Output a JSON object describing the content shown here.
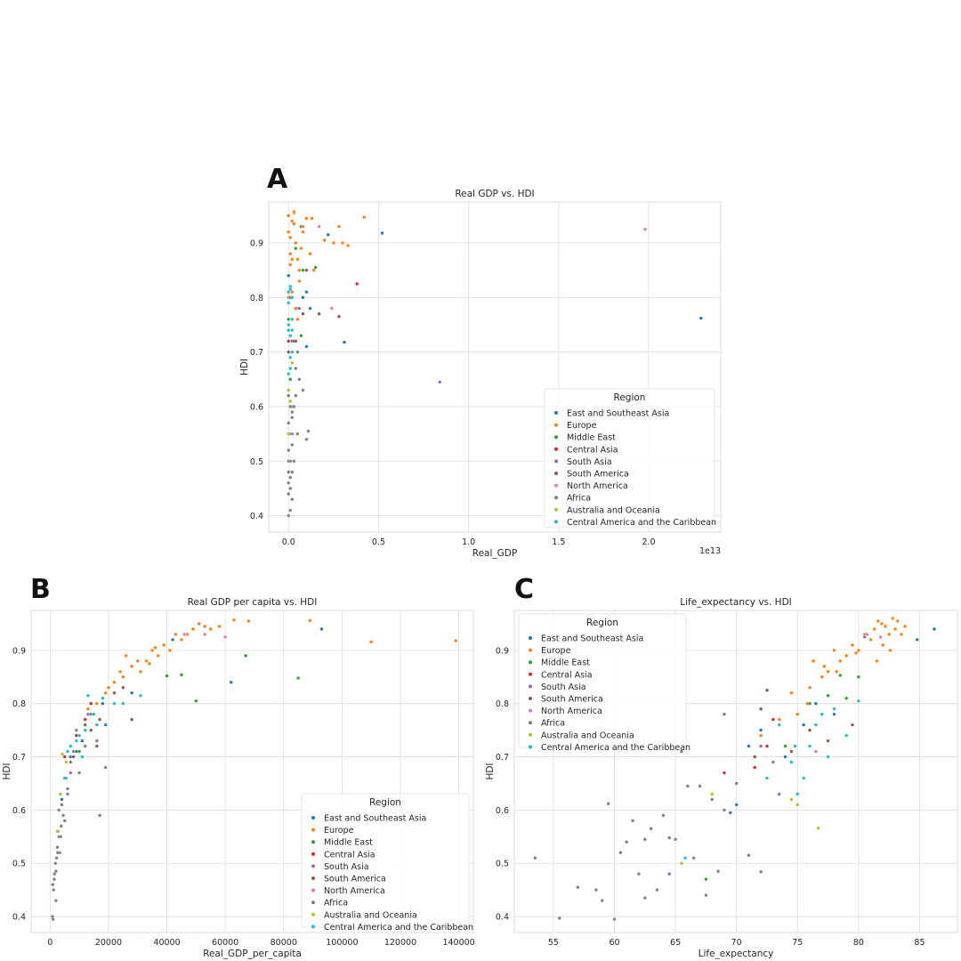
{
  "panels": [
    "A",
    "B",
    "C"
  ],
  "legend": {
    "title": "Region",
    "entries": [
      {
        "name": "East and Southeast Asia",
        "color": "#1f77b4"
      },
      {
        "name": "Europe",
        "color": "#ff7f0e"
      },
      {
        "name": "Middle East",
        "color": "#2ca02c"
      },
      {
        "name": "Central Asia",
        "color": "#d62728"
      },
      {
        "name": "South Asia",
        "color": "#9467bd"
      },
      {
        "name": "South America",
        "color": "#8c564b"
      },
      {
        "name": "North America",
        "color": "#e377c2"
      },
      {
        "name": "Africa",
        "color": "#7f7f7f"
      },
      {
        "name": "Australia and Oceania",
        "color": "#bcbd22"
      },
      {
        "name": "Central America and the Caribbean",
        "color": "#17becf"
      }
    ]
  },
  "chart_data": [
    {
      "panel": "A",
      "type": "scatter",
      "title": "Real GDP vs. HDI",
      "xlabel": "Real_GDP",
      "ylabel": "HDI",
      "x_offset_text": "1e13",
      "xlim": [
        -0.11,
        2.4
      ],
      "ylim": [
        0.37,
        0.975
      ],
      "xticks": [
        0,
        0.5,
        1.0,
        1.5,
        2.0
      ],
      "xtick_labels": [
        "0.0",
        "0.5",
        "1.0",
        "1.5",
        "2.0"
      ],
      "yticks": [
        0.4,
        0.5,
        0.6,
        0.7,
        0.8,
        0.9
      ],
      "ytick_labels": [
        "0.4",
        "0.5",
        "0.6",
        "0.7",
        "0.8",
        "0.9"
      ],
      "grid": true,
      "legend_position": "lower right",
      "series": [
        {
          "name": "East and Southeast Asia",
          "x": [
            0.0,
            0.01,
            0.02,
            0.05,
            0.07,
            0.1,
            0.1,
            0.12,
            0.22,
            0.31,
            0.52,
            2.29,
            0.02,
            0.08
          ],
          "y": [
            0.84,
            0.8,
            0.72,
            0.78,
            0.93,
            0.81,
            0.71,
            0.78,
            0.915,
            0.718,
            0.918,
            0.762,
            0.6,
            0.8
          ]
        },
        {
          "name": "Europe",
          "x": [
            0.0,
            0.0,
            0.01,
            0.01,
            0.02,
            0.03,
            0.04,
            0.05,
            0.06,
            0.07,
            0.08,
            0.1,
            0.12,
            0.13,
            0.2,
            0.25,
            0.28,
            0.3,
            0.33,
            0.42,
            0.02,
            0.04,
            0.06,
            0.01,
            0.03,
            0.05,
            0.0,
            0.02,
            0.08,
            0.14,
            0.03,
            0.01
          ],
          "y": [
            0.95,
            0.92,
            0.88,
            0.86,
            0.94,
            0.955,
            0.9,
            0.87,
            0.83,
            0.89,
            0.92,
            0.945,
            0.88,
            0.945,
            0.905,
            0.9,
            0.93,
            0.9,
            0.895,
            0.947,
            0.81,
            0.78,
            0.85,
            0.82,
            0.935,
            0.76,
            0.8,
            0.87,
            0.93,
            0.85,
            0.957,
            0.91
          ]
        },
        {
          "name": "Middle East",
          "x": [
            0.0,
            0.02,
            0.04,
            0.08,
            0.15,
            0.07,
            0.01
          ],
          "y": [
            0.76,
            0.7,
            0.89,
            0.85,
            0.855,
            0.73,
            0.65
          ]
        },
        {
          "name": "Central Asia",
          "x": [
            0.0,
            0.01,
            0.02,
            0.38
          ],
          "y": [
            0.72,
            0.8,
            0.7,
            0.825
          ]
        },
        {
          "name": "South Asia",
          "x": [
            0.0,
            0.01,
            0.02,
            0.06,
            0.84
          ],
          "y": [
            0.5,
            0.6,
            0.55,
            0.78,
            0.645
          ]
        },
        {
          "name": "South America",
          "x": [
            0.0,
            0.01,
            0.03,
            0.04,
            0.08,
            0.1,
            0.17,
            0.28
          ],
          "y": [
            0.7,
            0.8,
            0.72,
            0.72,
            0.77,
            0.85,
            0.77,
            0.765
          ]
        },
        {
          "name": "North America",
          "x": [
            1.98,
            0.24,
            0.17
          ],
          "y": [
            0.925,
            0.78,
            0.93
          ]
        },
        {
          "name": "Africa",
          "x": [
            0.0,
            0.0,
            0.0,
            0.0,
            0.0,
            0.0,
            0.0,
            0.0,
            0.01,
            0.01,
            0.01,
            0.01,
            0.01,
            0.02,
            0.02,
            0.02,
            0.02,
            0.03,
            0.03,
            0.04,
            0.04,
            0.05,
            0.05,
            0.06,
            0.08,
            0.1,
            0.11,
            0.0,
            0.01,
            0.02
          ],
          "y": [
            0.4,
            0.44,
            0.46,
            0.48,
            0.5,
            0.52,
            0.55,
            0.57,
            0.41,
            0.45,
            0.5,
            0.55,
            0.6,
            0.43,
            0.48,
            0.53,
            0.58,
            0.5,
            0.6,
            0.62,
            0.67,
            0.55,
            0.7,
            0.65,
            0.63,
            0.54,
            0.555,
            0.62,
            0.47,
            0.59
          ]
        },
        {
          "name": "Australia and Oceania",
          "x": [
            0.0,
            0.0,
            0.01,
            0.02
          ],
          "y": [
            0.55,
            0.63,
            0.61,
            0.68
          ]
        },
        {
          "name": "Central America and the Caribbean",
          "x": [
            0.0,
            0.0,
            0.0,
            0.01,
            0.01,
            0.01,
            0.02,
            0.02,
            0.0,
            0.01,
            0.02,
            0.01,
            0.0,
            0.02
          ],
          "y": [
            0.81,
            0.74,
            0.66,
            0.82,
            0.73,
            0.67,
            0.76,
            0.8,
            0.79,
            0.815,
            0.7,
            0.69,
            0.75,
            0.74
          ]
        }
      ]
    },
    {
      "panel": "B",
      "type": "scatter",
      "title": "Real GDP per capita vs. HDI",
      "xlabel": "Real_GDP_per_capita",
      "ylabel": "HDI",
      "xlim": [
        -6500,
        145000
      ],
      "ylim": [
        0.37,
        0.975
      ],
      "xticks": [
        0,
        20000,
        40000,
        60000,
        80000,
        100000,
        120000,
        140000
      ],
      "xtick_labels": [
        "0",
        "20000",
        "40000",
        "60000",
        "80000",
        "100000",
        "120000",
        "140000"
      ],
      "yticks": [
        0.4,
        0.5,
        0.6,
        0.7,
        0.8,
        0.9
      ],
      "ytick_labels": [
        "0.4",
        "0.5",
        "0.6",
        "0.7",
        "0.8",
        "0.9"
      ],
      "grid": true,
      "legend_position": "lower right",
      "series": [
        {
          "name": "East and Southeast Asia",
          "x": [
            4000,
            7000,
            9000,
            12000,
            15000,
            18000,
            28000,
            42000,
            62000,
            93000,
            19000,
            11000
          ],
          "y": [
            0.62,
            0.7,
            0.71,
            0.75,
            0.78,
            0.8,
            0.82,
            0.92,
            0.84,
            0.94,
            0.76,
            0.73
          ]
        },
        {
          "name": "Europe",
          "x": [
            9000,
            13000,
            16000,
            19000,
            22000,
            25000,
            28000,
            31000,
            33000,
            35000,
            37000,
            39000,
            41000,
            43000,
            45000,
            47000,
            49000,
            51000,
            53000,
            55000,
            58000,
            63000,
            68000,
            89000,
            110000,
            139000,
            26000,
            30000,
            36000,
            34000,
            20000,
            24000
          ],
          "y": [
            0.75,
            0.79,
            0.8,
            0.82,
            0.84,
            0.85,
            0.87,
            0.86,
            0.88,
            0.9,
            0.89,
            0.91,
            0.9,
            0.93,
            0.92,
            0.93,
            0.94,
            0.95,
            0.945,
            0.94,
            0.945,
            0.957,
            0.955,
            0.956,
            0.916,
            0.918,
            0.89,
            0.88,
            0.905,
            0.875,
            0.83,
            0.86
          ]
        },
        {
          "name": "Middle East",
          "x": [
            10000,
            16000,
            40000,
            45000,
            50000,
            67000,
            85000,
            14000
          ],
          "y": [
            0.71,
            0.76,
            0.852,
            0.854,
            0.805,
            0.89,
            0.848,
            0.78
          ]
        },
        {
          "name": "Central Asia",
          "x": [
            5000,
            9000,
            12000,
            14000
          ],
          "y": [
            0.7,
            0.74,
            0.77,
            0.8
          ]
        },
        {
          "name": "South Asia",
          "x": [
            3000,
            6000,
            7000,
            13000,
            17000
          ],
          "y": [
            0.55,
            0.63,
            0.67,
            0.78,
            0.59
          ]
        },
        {
          "name": "South America",
          "x": [
            8000,
            12000,
            14000,
            16000,
            17000,
            22000,
            25000,
            28000
          ],
          "y": [
            0.7,
            0.76,
            0.75,
            0.72,
            0.77,
            0.82,
            0.83,
            0.77
          ]
        },
        {
          "name": "North America",
          "x": [
            46000,
            53000,
            60000
          ],
          "y": [
            0.93,
            0.93,
            0.925
          ]
        },
        {
          "name": "Africa",
          "x": [
            800,
            1000,
            1200,
            1500,
            1800,
            2000,
            2200,
            2500,
            2800,
            3000,
            3300,
            3600,
            4000,
            4500,
            5000,
            5500,
            6000,
            7000,
            8000,
            9000,
            10000,
            12000,
            14000,
            16000,
            19000,
            1400,
            2600,
            3800,
            900,
            2000
          ],
          "y": [
            0.4,
            0.395,
            0.45,
            0.48,
            0.5,
            0.43,
            0.51,
            0.53,
            0.56,
            0.6,
            0.52,
            0.55,
            0.61,
            0.59,
            0.58,
            0.66,
            0.64,
            0.69,
            0.71,
            0.75,
            0.67,
            0.72,
            0.78,
            0.73,
            0.68,
            0.47,
            0.52,
            0.57,
            0.46,
            0.485
          ]
        },
        {
          "name": "Australia and Oceania",
          "x": [
            2500,
            3500,
            4200,
            5500
          ],
          "y": [
            0.56,
            0.63,
            0.705,
            0.69
          ]
        },
        {
          "name": "Central America and the Caribbean",
          "x": [
            5000,
            7000,
            9000,
            10000,
            12000,
            13000,
            15000,
            16000,
            18000,
            22000,
            25000,
            31000,
            6000,
            11000
          ],
          "y": [
            0.66,
            0.72,
            0.73,
            0.74,
            0.75,
            0.815,
            0.78,
            0.76,
            0.81,
            0.8,
            0.8,
            0.815,
            0.71,
            0.7
          ]
        }
      ]
    },
    {
      "panel": "C",
      "type": "scatter",
      "title": "Life_expectancy vs. HDI",
      "xlabel": "Life_expectancy",
      "ylabel": "HDI",
      "xlim": [
        51.8,
        88.1
      ],
      "ylim": [
        0.37,
        0.975
      ],
      "xticks": [
        55,
        60,
        65,
        70,
        75,
        80,
        85
      ],
      "xtick_labels": [
        "55",
        "60",
        "65",
        "70",
        "75",
        "80",
        "85"
      ],
      "yticks": [
        0.4,
        0.5,
        0.6,
        0.7,
        0.8,
        0.9
      ],
      "ytick_labels": [
        "0.4",
        "0.5",
        "0.6",
        "0.7",
        "0.8",
        "0.9"
      ],
      "grid": true,
      "legend_position": "upper left",
      "series": [
        {
          "name": "East and Southeast Asia",
          "x": [
            69.5,
            71.0,
            72.0,
            74.0,
            75.5,
            76.5,
            78.0,
            79.0,
            84.8,
            86.2,
            73.0,
            70.0
          ],
          "y": [
            0.595,
            0.72,
            0.75,
            0.7,
            0.76,
            0.8,
            0.78,
            0.81,
            0.92,
            0.94,
            0.77,
            0.61
          ]
        },
        {
          "name": "Europe",
          "x": [
            72.0,
            73.5,
            74.5,
            75.0,
            75.8,
            76.3,
            77.0,
            77.5,
            78.0,
            78.5,
            79.0,
            79.5,
            80.0,
            80.5,
            81.0,
            81.3,
            81.6,
            81.9,
            82.2,
            82.5,
            82.8,
            83.0,
            83.2,
            83.5,
            81.5,
            82.0,
            82.6,
            83.8,
            76.0,
            77.2,
            78.2,
            79.8
          ],
          "y": [
            0.74,
            0.77,
            0.82,
            0.78,
            0.8,
            0.88,
            0.85,
            0.86,
            0.9,
            0.88,
            0.89,
            0.91,
            0.9,
            0.93,
            0.92,
            0.94,
            0.955,
            0.95,
            0.945,
            0.93,
            0.96,
            0.94,
            0.955,
            0.93,
            0.88,
            0.91,
            0.9,
            0.945,
            0.83,
            0.87,
            0.86,
            0.895
          ]
        },
        {
          "name": "Middle East",
          "x": [
            67.5,
            71.5,
            74.0,
            76.0,
            77.5,
            78.5,
            80.0,
            79.0
          ],
          "y": [
            0.47,
            0.7,
            0.72,
            0.8,
            0.815,
            0.853,
            0.85,
            0.81
          ]
        },
        {
          "name": "Central Asia",
          "x": [
            69.0,
            71.5,
            72.5,
            73.0
          ],
          "y": [
            0.67,
            0.68,
            0.72,
            0.77
          ]
        },
        {
          "name": "South Asia",
          "x": [
            64.5,
            69.0,
            72.0,
            73.5,
            80.5
          ],
          "y": [
            0.48,
            0.78,
            0.72,
            0.63,
            0.925
          ]
        },
        {
          "name": "South America",
          "x": [
            71.5,
            72.0,
            72.5,
            73.5,
            74.5,
            76.0,
            77.5,
            79.5
          ],
          "y": [
            0.7,
            0.79,
            0.825,
            0.76,
            0.71,
            0.75,
            0.73,
            0.76
          ]
        },
        {
          "name": "North America",
          "x": [
            76.5,
            80.7,
            81.8
          ],
          "y": [
            0.71,
            0.93,
            0.925
          ]
        },
        {
          "name": "Africa",
          "x": [
            53.5,
            55.5,
            57.0,
            58.5,
            59.0,
            59.5,
            60.0,
            61.0,
            61.5,
            62.0,
            62.5,
            63.0,
            63.5,
            64.0,
            64.5,
            65.0,
            65.5,
            66.0,
            66.5,
            67.0,
            67.5,
            68.0,
            68.5,
            69.0,
            70.0,
            71.0,
            72.0,
            73.0,
            60.5,
            62.5
          ],
          "y": [
            0.51,
            0.397,
            0.455,
            0.45,
            0.43,
            0.612,
            0.395,
            0.54,
            0.58,
            0.48,
            0.435,
            0.565,
            0.45,
            0.59,
            0.548,
            0.545,
            0.71,
            0.645,
            0.51,
            0.645,
            0.44,
            0.62,
            0.485,
            0.6,
            0.65,
            0.515,
            0.484,
            0.69,
            0.52,
            0.545
          ]
        },
        {
          "name": "Australia and Oceania",
          "x": [
            65.5,
            68.0,
            74.5,
            75.0,
            76.7
          ],
          "y": [
            0.5,
            0.63,
            0.62,
            0.61,
            0.566
          ]
        },
        {
          "name": "Central America and the Caribbean",
          "x": [
            65.8,
            72.5,
            73.5,
            74.5,
            75.0,
            75.5,
            76.0,
            76.5,
            77.0,
            77.5,
            78.0,
            79.0,
            80.0,
            74.8
          ],
          "y": [
            0.51,
            0.66,
            0.76,
            0.69,
            0.63,
            0.66,
            0.72,
            0.76,
            0.78,
            0.7,
            0.79,
            0.74,
            0.805,
            0.72
          ]
        }
      ]
    }
  ]
}
